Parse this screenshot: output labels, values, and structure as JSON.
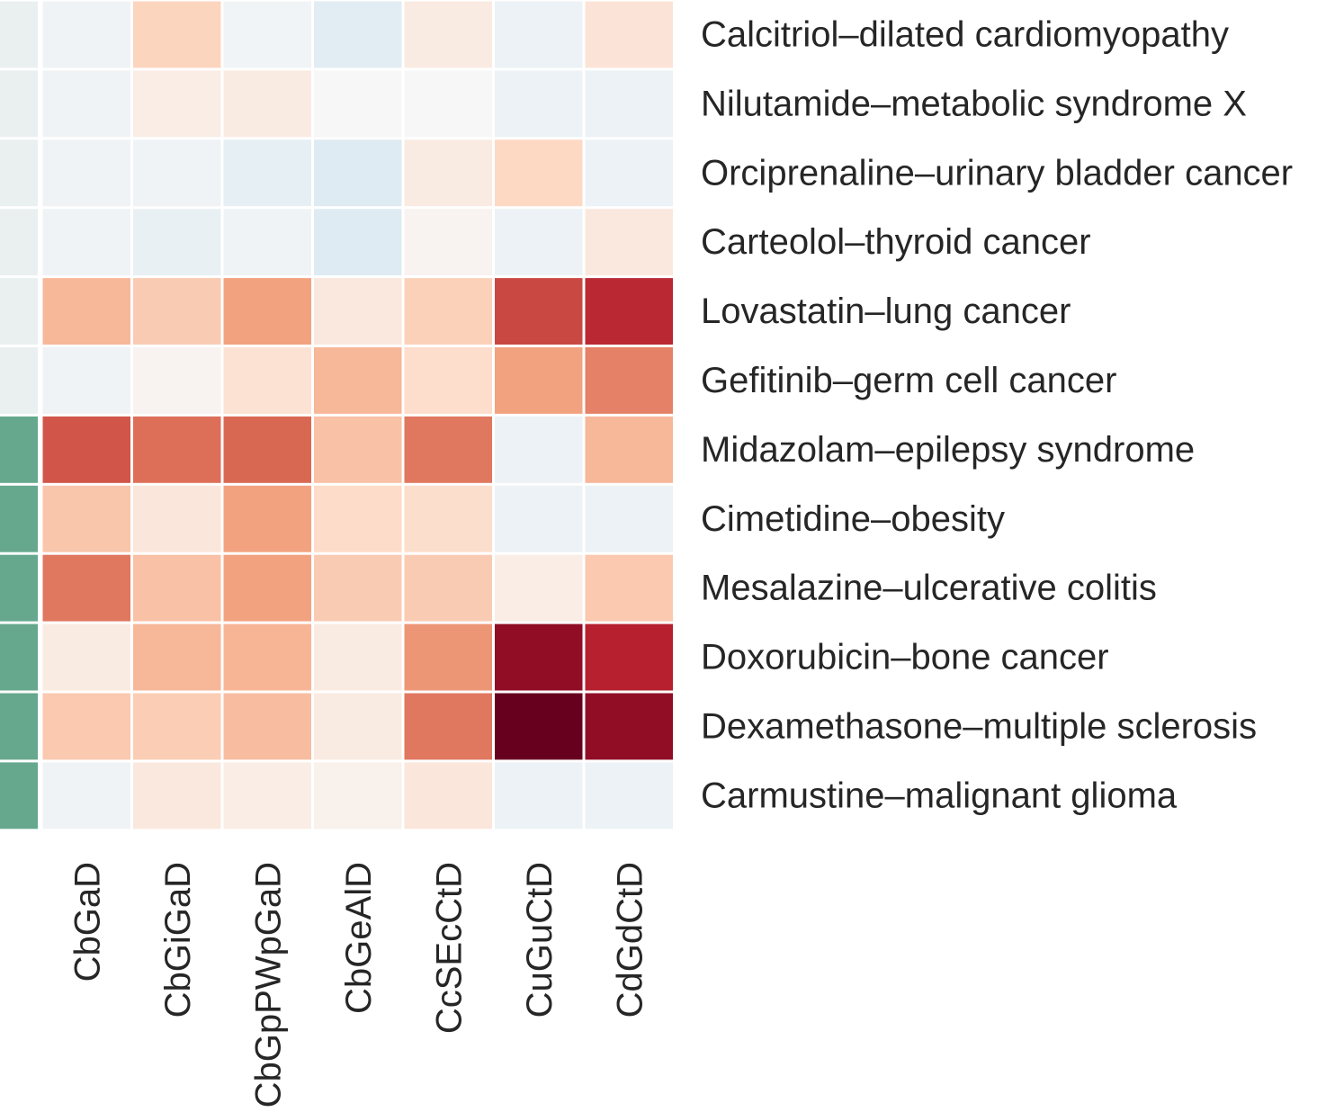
{
  "chart_data": {
    "type": "heatmap",
    "title": "",
    "xlabel": "",
    "ylabel": "",
    "columns": [
      "CbGaD",
      "CbGiGaD",
      "CbGpPWpGaD",
      "CbGeAlD",
      "CcSEcCtD",
      "CuGuCtD",
      "CdGdCtD"
    ],
    "rows": [
      "Calcitriol–dilated cardiomyopathy",
      "Nilutamide–metabolic syndrome X",
      "Orciprenaline–urinary bladder cancer",
      "Carteolol–thyroid cancer",
      "Lovastatin–lung cancer",
      "Gefitinib–germ cell cancer",
      "Midazolam–epilepsy syndrome",
      "Cimetidine–obesity",
      "Mesalazine–ulcerative colitis",
      "Doxorubicin–bone cancer",
      "Dexamethasone–multiple sclerosis",
      "Carmustine–malignant glioma"
    ],
    "row_status": [
      0,
      0,
      0,
      0,
      0,
      0,
      1,
      1,
      1,
      1,
      1,
      1
    ],
    "status_colors": [
      "#eaf0f0",
      "#66a88d"
    ],
    "values": [
      [
        -0.06,
        0.3,
        -0.05,
        -0.15,
        0.12,
        -0.08,
        0.18
      ],
      [
        -0.06,
        0.1,
        0.12,
        0.0,
        0.0,
        -0.08,
        -0.08
      ],
      [
        -0.06,
        -0.06,
        -0.12,
        -0.18,
        0.12,
        0.28,
        -0.08
      ],
      [
        -0.06,
        -0.1,
        -0.06,
        -0.18,
        0.04,
        -0.08,
        0.14
      ],
      [
        0.45,
        0.35,
        0.55,
        0.14,
        0.32,
        0.9,
        1.02
      ],
      [
        -0.06,
        0.04,
        0.2,
        0.45,
        0.25,
        0.55,
        0.68
      ],
      [
        0.85,
        0.75,
        0.78,
        0.4,
        0.72,
        -0.08,
        0.45
      ],
      [
        0.38,
        0.16,
        0.55,
        0.26,
        0.24,
        -0.08,
        -0.08
      ],
      [
        0.72,
        0.4,
        0.55,
        0.35,
        0.35,
        0.1,
        0.36
      ],
      [
        0.12,
        0.45,
        0.46,
        0.12,
        0.6,
        1.2,
        1.05
      ],
      [
        0.36,
        0.34,
        0.42,
        0.12,
        0.72,
        1.35,
        1.2
      ],
      [
        -0.06,
        0.14,
        0.1,
        0.06,
        0.16,
        -0.08,
        -0.08
      ]
    ],
    "vmin": -1.35,
    "vmax": 1.35,
    "colormap": "RdBu_r"
  }
}
